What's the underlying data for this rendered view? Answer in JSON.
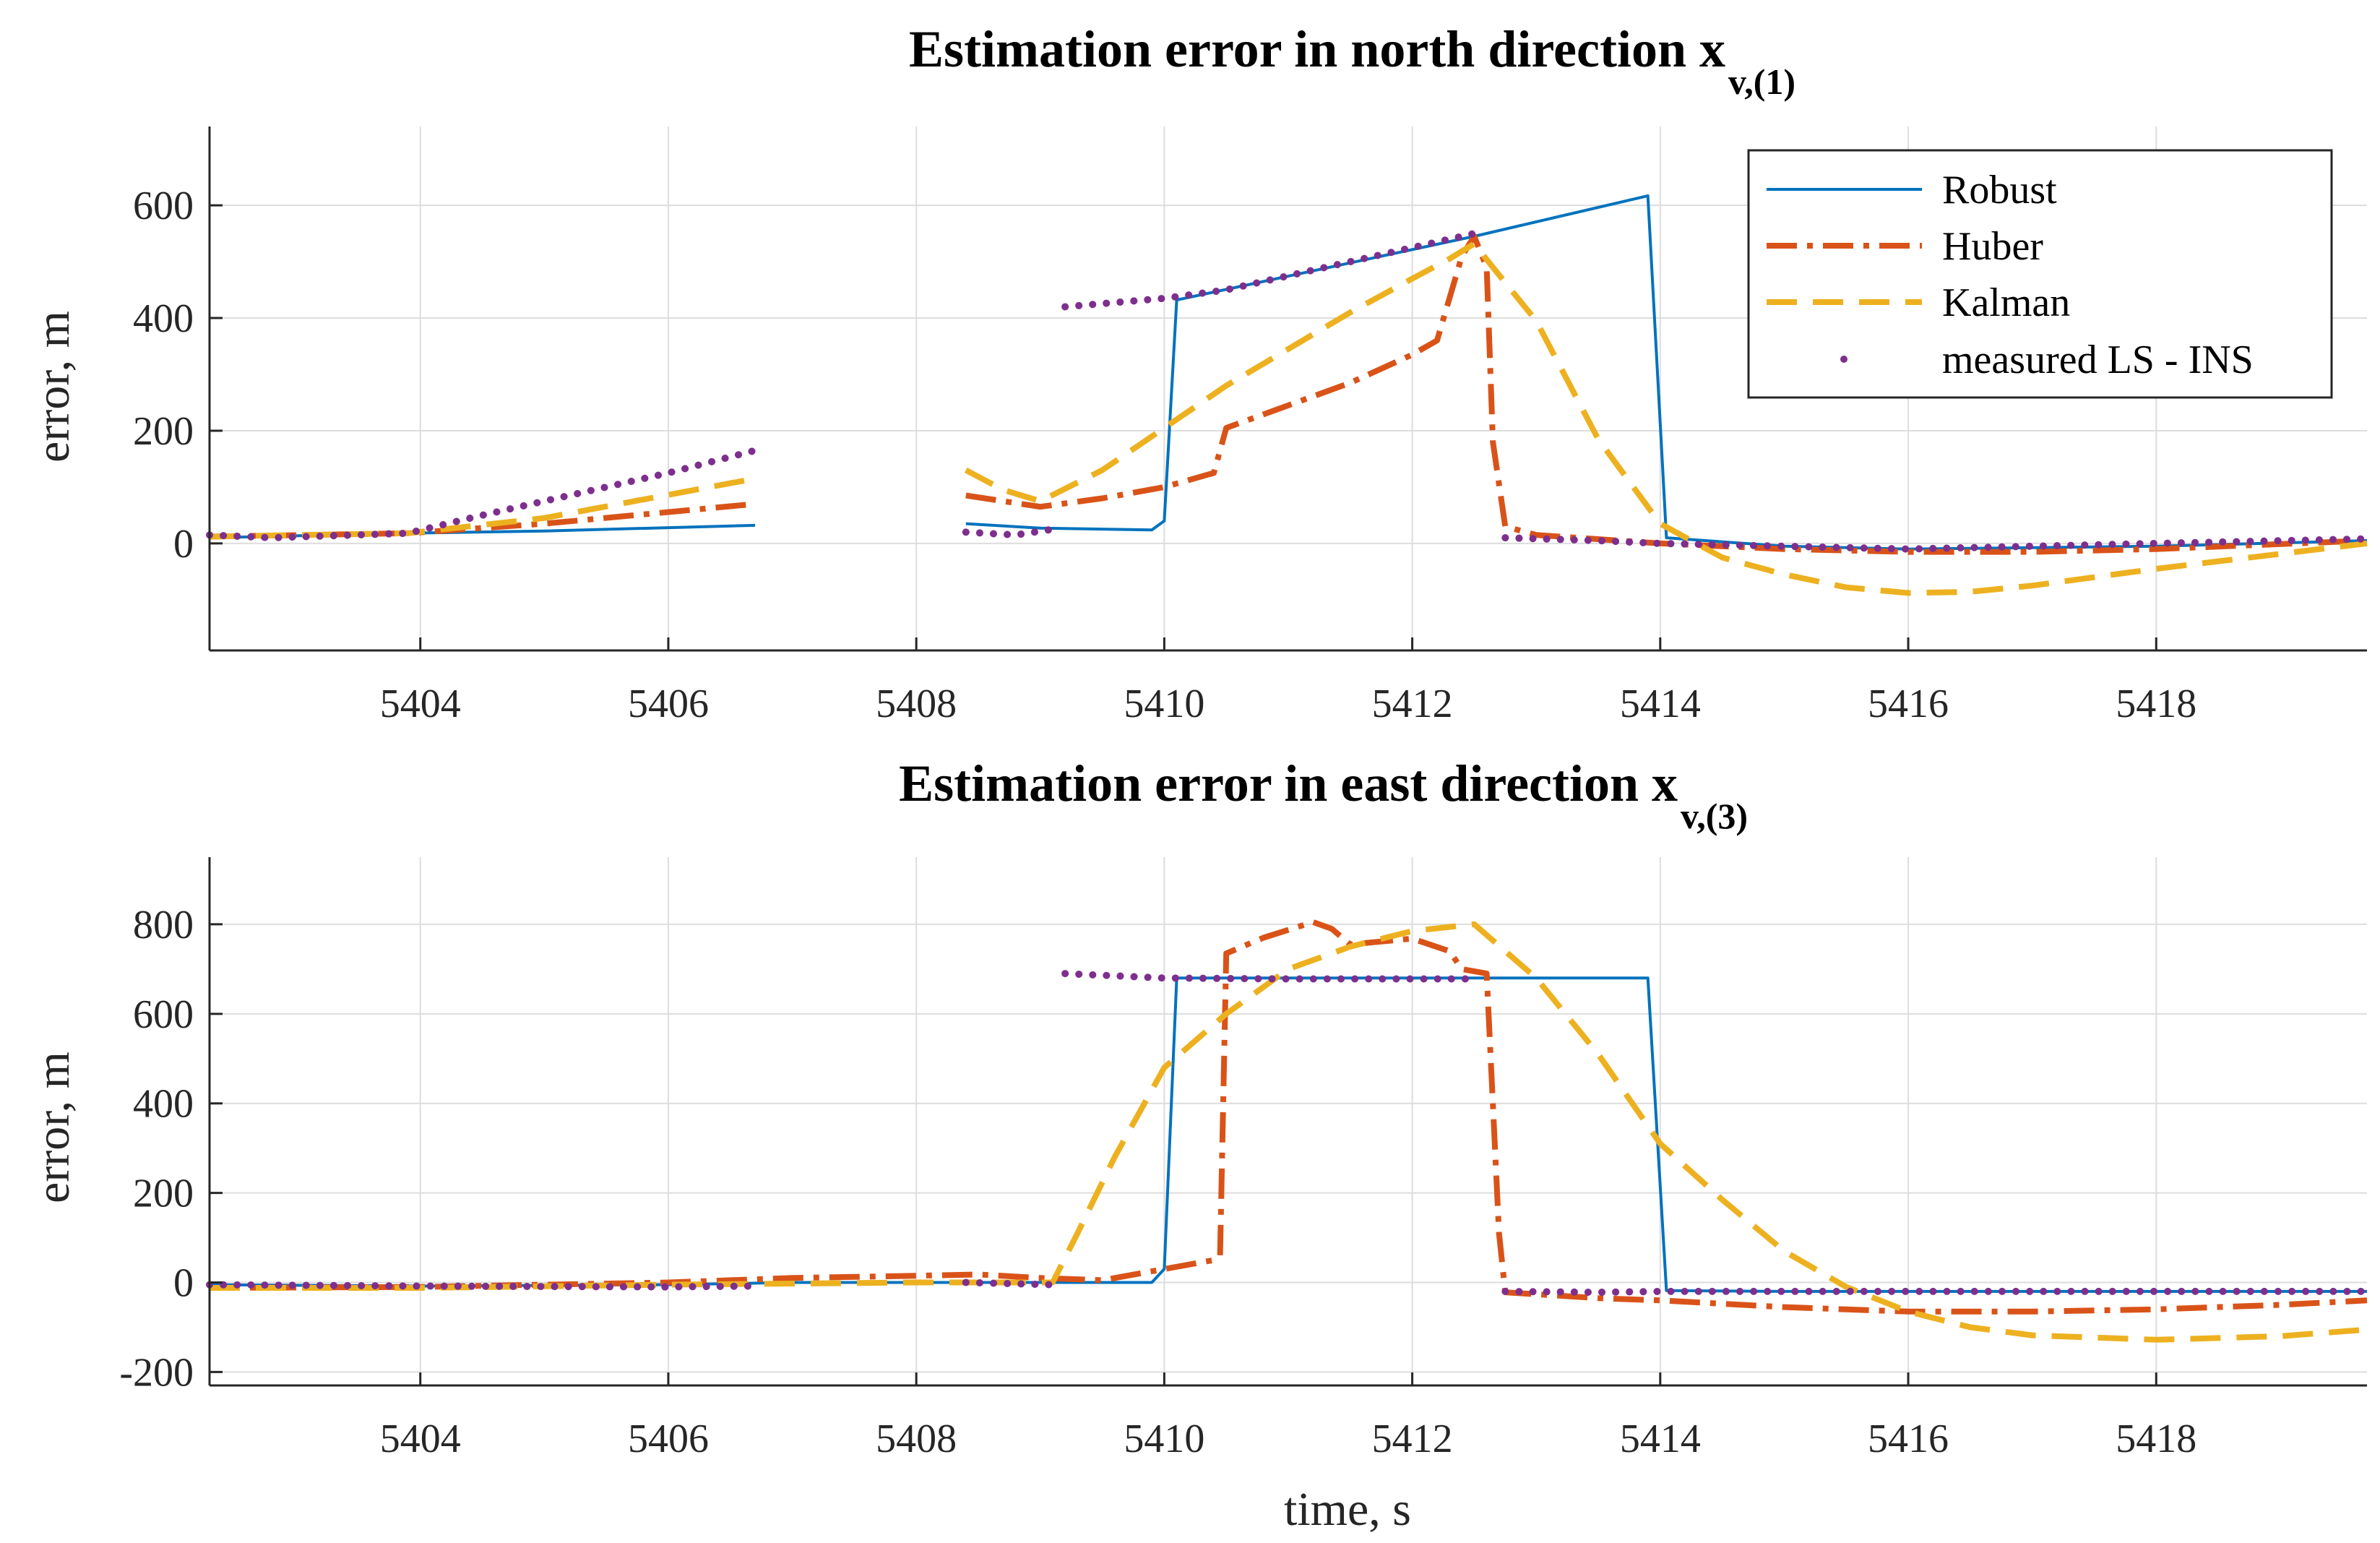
{
  "colors": {
    "robust": "#0072BD",
    "huber": "#D95319",
    "kalman": "#EDB120",
    "measured": "#7E2F8E",
    "grid": "#DDDDDD",
    "axis": "#262626"
  },
  "figure": {
    "xlabel": "time, s"
  },
  "chart_data": [
    {
      "type": "line",
      "title": "Estimation error in north direction x",
      "title_sub": "v,(1)",
      "xlabel": "",
      "ylabel": "error, m",
      "xlim": [
        5402.3,
        5419.7
      ],
      "ylim": [
        -190,
        740
      ],
      "xticks": [
        5404,
        5406,
        5408,
        5410,
        5412,
        5414,
        5416,
        5418
      ],
      "yticks": [
        0,
        200,
        400,
        600
      ],
      "grid": true,
      "legend": {
        "position": "top-right",
        "entries": [
          "Robust",
          "Huber",
          "Kalman",
          "measured LS - INS"
        ]
      },
      "series": [
        {
          "name": "Robust",
          "style": "solid",
          "segments": [
            [
              [
                5402.3,
                10
              ],
              [
                5403.9,
                18
              ],
              [
                5405,
                22
              ],
              [
                5406.7,
                32
              ]
            ],
            [
              [
                5408.4,
                35
              ],
              [
                5409,
                27
              ],
              [
                5409.9,
                24
              ],
              [
                5410,
                40
              ],
              [
                5410.1,
                432
              ],
              [
                5412.5,
                545
              ],
              [
                5413.9,
                617
              ],
              [
                5414.05,
                10
              ],
              [
                5415,
                -5
              ],
              [
                5416,
                -10
              ],
              [
                5418,
                -5
              ],
              [
                5419.7,
                5
              ]
            ]
          ]
        },
        {
          "name": "Huber",
          "style": "dashdot",
          "segments": [
            [
              [
                5402.3,
                12
              ],
              [
                5403.9,
                18
              ],
              [
                5405,
                35
              ],
              [
                5406.7,
                70
              ]
            ],
            [
              [
                5408.4,
                85
              ],
              [
                5409,
                65
              ],
              [
                5409.5,
                80
              ],
              [
                5410,
                100
              ],
              [
                5410.4,
                125
              ],
              [
                5410.5,
                205
              ],
              [
                5411,
                245
              ],
              [
                5411.5,
                285
              ],
              [
                5412,
                335
              ],
              [
                5412.2,
                360
              ],
              [
                5412.4,
                510
              ],
              [
                5412.5,
                545
              ],
              [
                5412.6,
                490
              ],
              [
                5412.65,
                180
              ],
              [
                5412.75,
                30
              ],
              [
                5413,
                15
              ],
              [
                5414,
                0
              ],
              [
                5415,
                -10
              ],
              [
                5416,
                -15
              ],
              [
                5417,
                -15
              ],
              [
                5418,
                -10
              ],
              [
                5419.7,
                5
              ]
            ]
          ]
        },
        {
          "name": "Kalman",
          "style": "dashed",
          "segments": [
            [
              [
                5402.3,
                12
              ],
              [
                5403.9,
                18
              ],
              [
                5405,
                45
              ],
              [
                5406.7,
                115
              ]
            ],
            [
              [
                5408.4,
                130
              ],
              [
                5408.7,
                95
              ],
              [
                5409,
                75
              ],
              [
                5409.5,
                130
              ],
              [
                5410,
                205
              ],
              [
                5410.5,
                280
              ],
              [
                5411,
                345
              ],
              [
                5411.5,
                410
              ],
              [
                5412,
                470
              ],
              [
                5412.3,
                505
              ],
              [
                5412.5,
                532
              ],
              [
                5412.65,
                490
              ],
              [
                5413,
                395
              ],
              [
                5413.5,
                185
              ],
              [
                5414,
                35
              ],
              [
                5414.5,
                -25
              ],
              [
                5415,
                -55
              ],
              [
                5415.5,
                -78
              ],
              [
                5416,
                -88
              ],
              [
                5416.5,
                -86
              ],
              [
                5417,
                -75
              ],
              [
                5418,
                -45
              ],
              [
                5419.7,
                0
              ]
            ]
          ]
        },
        {
          "name": "measured LS - INS",
          "style": "dotted",
          "segments": [
            [
              [
                5402.3,
                15
              ],
              [
                5402.8,
                10
              ],
              [
                5403.9,
                18
              ],
              [
                5404.5,
                50
              ],
              [
                5405,
                75
              ],
              [
                5405.5,
                100
              ],
              [
                5406,
                125
              ],
              [
                5406.7,
                165
              ]
            ],
            [
              [
                5408.4,
                20
              ],
              [
                5408.8,
                15
              ],
              [
                5409.1,
                25
              ]
            ],
            [
              [
                5409.2,
                420
              ],
              [
                5410,
                435
              ],
              [
                5410.5,
                450
              ],
              [
                5411,
                475
              ],
              [
                5411.5,
                500
              ],
              [
                5412,
                525
              ],
              [
                5412.5,
                550
              ]
            ],
            [
              [
                5412.75,
                10
              ],
              [
                5413.5,
                5
              ],
              [
                5414,
                0
              ],
              [
                5415,
                -5
              ],
              [
                5416,
                -10
              ],
              [
                5417,
                -5
              ],
              [
                5418,
                0
              ],
              [
                5419.7,
                8
              ]
            ]
          ]
        }
      ]
    },
    {
      "type": "line",
      "title": "Estimation error in east direction x",
      "title_sub": "v,(3)",
      "xlabel": "time, s",
      "ylabel": "error, m",
      "xlim": [
        5402.3,
        5419.7
      ],
      "ylim": [
        -230,
        950
      ],
      "xticks": [
        5404,
        5406,
        5408,
        5410,
        5412,
        5414,
        5416,
        5418
      ],
      "yticks": [
        -200,
        0,
        200,
        400,
        600,
        800
      ],
      "grid": true,
      "series": [
        {
          "name": "Robust",
          "style": "solid",
          "segments": [
            [
              [
                5402.3,
                -5
              ],
              [
                5404,
                -8
              ],
              [
                5406,
                -5
              ],
              [
                5407,
                0
              ],
              [
                5408,
                0
              ],
              [
                5409,
                0
              ],
              [
                5409.9,
                0
              ],
              [
                5410,
                30
              ],
              [
                5410.1,
                680
              ],
              [
                5413.9,
                680
              ],
              [
                5414.05,
                -18
              ],
              [
                5415,
                -20
              ],
              [
                5419.7,
                -20
              ]
            ]
          ]
        },
        {
          "name": "Huber",
          "style": "dashdot",
          "segments": [
            [
              [
                5402.3,
                -12
              ],
              [
                5404,
                -10
              ],
              [
                5406,
                0
              ],
              [
                5407,
                10
              ],
              [
                5408,
                15
              ],
              [
                5408.5,
                18
              ],
              [
                5409,
                10
              ],
              [
                5409.5,
                5
              ],
              [
                5410,
                30
              ],
              [
                5410.4,
                50
              ],
              [
                5410.45,
                60
              ],
              [
                5410.5,
                735
              ],
              [
                5410.8,
                770
              ],
              [
                5411.2,
                805
              ],
              [
                5411.35,
                790
              ],
              [
                5411.5,
                755
              ],
              [
                5412,
                768
              ],
              [
                5412.3,
                740
              ],
              [
                5412.4,
                700
              ],
              [
                5412.6,
                690
              ],
              [
                5412.7,
                110
              ],
              [
                5412.75,
                -22
              ],
              [
                5413.5,
                -35
              ],
              [
                5414,
                -40
              ],
              [
                5415,
                -55
              ],
              [
                5416,
                -65
              ],
              [
                5417,
                -65
              ],
              [
                5418,
                -60
              ],
              [
                5419,
                -50
              ],
              [
                5419.7,
                -40
              ]
            ]
          ]
        },
        {
          "name": "Kalman",
          "style": "dashed",
          "segments": [
            [
              [
                5402.3,
                -12
              ],
              [
                5404,
                -12
              ],
              [
                5406,
                -5
              ],
              [
                5408,
                0
              ],
              [
                5409.1,
                0
              ],
              [
                5409.3,
                110
              ],
              [
                5409.6,
                280
              ],
              [
                5410,
                480
              ],
              [
                5410.5,
                600
              ],
              [
                5411,
                700
              ],
              [
                5411.5,
                750
              ],
              [
                5412,
                785
              ],
              [
                5412.5,
                800
              ],
              [
                5413,
                680
              ],
              [
                5413.5,
                510
              ],
              [
                5414,
                310
              ],
              [
                5414.5,
                185
              ],
              [
                5415,
                70
              ],
              [
                5415.5,
                -10
              ],
              [
                5416,
                -65
              ],
              [
                5416.5,
                -100
              ],
              [
                5417,
                -118
              ],
              [
                5418,
                -128
              ],
              [
                5419,
                -120
              ],
              [
                5419.7,
                -105
              ]
            ]
          ]
        },
        {
          "name": "measured LS - INS",
          "style": "dotted",
          "segments": [
            [
              [
                5402.3,
                -5
              ],
              [
                5404,
                -8
              ],
              [
                5406,
                -10
              ],
              [
                5406.7,
                -8
              ]
            ],
            [
              [
                5408.4,
                0
              ],
              [
                5409.1,
                -5
              ]
            ],
            [
              [
                5409.2,
                690
              ],
              [
                5410,
                680
              ],
              [
                5411,
                678
              ],
              [
                5412,
                678
              ],
              [
                5412.5,
                678
              ]
            ],
            [
              [
                5412.75,
                -20
              ],
              [
                5413.5,
                -22
              ],
              [
                5414,
                -20
              ],
              [
                5416,
                -20
              ],
              [
                5418,
                -20
              ],
              [
                5419.7,
                -20
              ]
            ]
          ]
        }
      ]
    }
  ]
}
